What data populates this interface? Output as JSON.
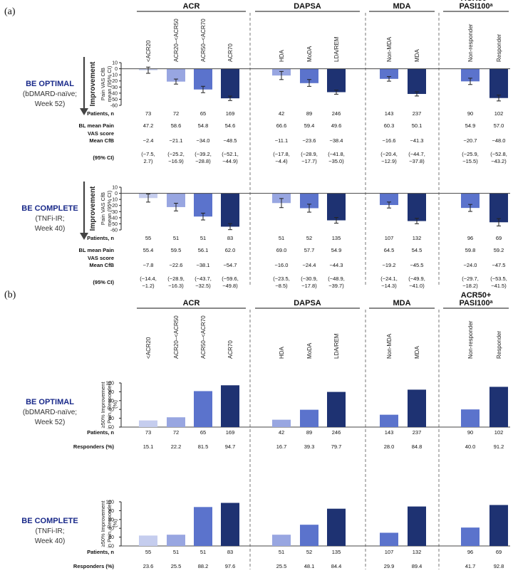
{
  "panel_labels": [
    "(a)",
    "(b)"
  ],
  "groups": [
    {
      "name": "ACR",
      "sup": "",
      "categories": [
        "<ACR20",
        "ACR20–<ACR50",
        "ACR50–<ACR70",
        "ACR70"
      ]
    },
    {
      "name": "DAPSA",
      "sup": "",
      "categories": [
        "HDA",
        "MoDA",
        "LDA/REM"
      ]
    },
    {
      "name": "MDA",
      "sup": "",
      "categories": [
        "Non-MDA",
        "MDA"
      ]
    },
    {
      "name": "ACR50+ PASI100",
      "name_line1": "ACR50+",
      "name_line2": "PASI100",
      "sup": "a",
      "categories": [
        "Non-responder",
        "Responder"
      ]
    }
  ],
  "colors": [
    "#c5cdee",
    "#98a6e1",
    "#5b73cc",
    "#1e3272",
    "#98a6e1",
    "#5b73cc",
    "#1e3272",
    "#5b73cc",
    "#1e3272",
    "#5b73cc",
    "#1e3272"
  ],
  "improvement_label": "Improvement",
  "studies": [
    {
      "name": "BE OPTIMAL",
      "sub1": "(bDMARD-naïve;",
      "sub2": "Week 52)"
    },
    {
      "name": "BE COMPLETE",
      "sub1": "(TNFi-IR;",
      "sub2": "Week 40)"
    }
  ],
  "row_labels": {
    "patients": "Patients, n",
    "bl1": "BL mean Pain",
    "bl2": "VAS score",
    "mean_cfb": "Mean CfB",
    "ci": "(95% CI)",
    "responders": "Responders (%)"
  },
  "panel_a": {
    "ylabel_1": "Pain VAS CfB",
    "ylabel_2": "mean (95% CI)",
    "yticks": [
      10,
      0,
      -10,
      -20,
      -30,
      -40,
      -50,
      -60
    ],
    "optimal": {
      "patients": [
        "73",
        "72",
        "65",
        "169",
        "42",
        "89",
        "246",
        "143",
        "237",
        "90",
        "102"
      ],
      "bl_mean": [
        "47.2",
        "58.6",
        "54.8",
        "54.6",
        "66.6",
        "59.4",
        "49.6",
        "60.3",
        "50.1",
        "54.9",
        "57.0"
      ],
      "mean_cfb": [
        "−2.4",
        "−21.1",
        "−34.0",
        "−48.5",
        "−11.1",
        "−23.6",
        "−38.4",
        "−16.6",
        "−41.3",
        "−20.7",
        "−48.0"
      ],
      "ci_1": [
        "(−7.5,",
        "(−25.2,",
        "(−39.2,",
        "(−52.1,",
        "(−17.8,",
        "(−28.9,",
        "(−41.8,",
        "(−20.4,",
        "(−44.7,",
        "(−25.9,",
        "(−52.8,"
      ],
      "ci_2": [
        "2.7)",
        "−16.9)",
        "−28.8)",
        "−44.9)",
        "−4.4)",
        "−17.7)",
        "−35.0)",
        "−12.9)",
        "−37.8)",
        "−15.5)",
        "−43.2)"
      ]
    },
    "complete": {
      "patients": [
        "55",
        "51",
        "51",
        "83",
        "51",
        "52",
        "135",
        "107",
        "132",
        "96",
        "69"
      ],
      "bl_mean": [
        "55.4",
        "59.5",
        "56.1",
        "62.0",
        "69.0",
        "57.7",
        "54.9",
        "64.5",
        "54.5",
        "59.8",
        "59.2"
      ],
      "mean_cfb": [
        "−7.8",
        "−22.6",
        "−38.1",
        "−54.7",
        "−16.0",
        "−24.4",
        "−44.3",
        "−19.2",
        "−45.5",
        "−24.0",
        "−47.5"
      ],
      "ci_1": [
        "(−14.4,",
        "(−28.9,",
        "(−43.7,",
        "(−59.6,",
        "(−23.5,",
        "(−30.9,",
        "(−48.9,",
        "(−24.1,",
        "(−49.9,",
        "(−29.7,",
        "(−53.5,"
      ],
      "ci_2": [
        "−1.2)",
        "−16.3)",
        "−32.5)",
        "−49.8)",
        "−8.5)",
        "−17.8)",
        "−39.7)",
        "−14.3)",
        "−41.0)",
        "−18.2)",
        "−41.5)"
      ]
    }
  },
  "panel_b": {
    "ylabel_1": "≥50% Improvement",
    "ylabel_2": "in Pain, Responders",
    "ylabel_3": "(%)",
    "yticks": [
      0,
      20,
      40,
      60,
      80,
      100
    ],
    "optimal": {
      "patients": [
        "73",
        "72",
        "65",
        "169",
        "42",
        "89",
        "246",
        "143",
        "237",
        "90",
        "102"
      ],
      "responders": [
        "15.1",
        "22.2",
        "81.5",
        "94.7",
        "16.7",
        "39.3",
        "79.7",
        "28.0",
        "84.8",
        "40.0",
        "91.2"
      ]
    },
    "complete": {
      "patients": [
        "55",
        "51",
        "51",
        "83",
        "51",
        "52",
        "135",
        "107",
        "132",
        "96",
        "69"
      ],
      "responders": [
        "23.6",
        "25.5",
        "88.2",
        "97.6",
        "25.5",
        "48.1",
        "84.4",
        "29.9",
        "89.4",
        "41.7",
        "92.8"
      ]
    }
  },
  "chart_data": [
    {
      "type": "bar",
      "title": "(a) BE OPTIMAL (bDMARD-naïve; Week 52)",
      "categories": [
        "<ACR20",
        "ACR20–<ACR50",
        "ACR50–<ACR70",
        "ACR70",
        "HDA",
        "MoDA",
        "LDA/REM",
        "Non-MDA",
        "MDA",
        "Non-responder",
        "Responder"
      ],
      "values": [
        -2.4,
        -21.1,
        -34.0,
        -48.5,
        -11.1,
        -23.6,
        -38.4,
        -16.6,
        -41.3,
        -20.7,
        -48.0
      ],
      "ci_low": [
        -7.5,
        -25.2,
        -39.2,
        -52.1,
        -17.8,
        -28.9,
        -41.8,
        -20.4,
        -44.7,
        -25.9,
        -52.8
      ],
      "ci_high": [
        2.7,
        -16.9,
        -28.8,
        -44.9,
        -4.4,
        -17.7,
        -35.0,
        -12.9,
        -37.8,
        -15.5,
        -43.2
      ],
      "ylabel": "Pain VAS CfB mean (95% CI)",
      "ylim": [
        -60,
        10
      ]
    },
    {
      "type": "bar",
      "title": "(a) BE COMPLETE (TNFi-IR; Week 40)",
      "categories": [
        "<ACR20",
        "ACR20–<ACR50",
        "ACR50–<ACR70",
        "ACR70",
        "HDA",
        "MoDA",
        "LDA/REM",
        "Non-MDA",
        "MDA",
        "Non-responder",
        "Responder"
      ],
      "values": [
        -7.8,
        -22.6,
        -38.1,
        -54.7,
        -16.0,
        -24.4,
        -44.3,
        -19.2,
        -45.5,
        -24.0,
        -47.5
      ],
      "ci_low": [
        -14.4,
        -28.9,
        -43.7,
        -59.6,
        -23.5,
        -30.9,
        -48.9,
        -24.1,
        -49.9,
        -29.7,
        -53.5
      ],
      "ci_high": [
        -1.2,
        -16.3,
        -32.5,
        -49.8,
        -8.5,
        -17.8,
        -39.7,
        -14.3,
        -41.0,
        -18.2,
        -41.5
      ],
      "ylabel": "Pain VAS CfB mean (95% CI)",
      "ylim": [
        -60,
        10
      ]
    },
    {
      "type": "bar",
      "title": "(b) BE OPTIMAL (bDMARD-naïve; Week 52)",
      "categories": [
        "<ACR20",
        "ACR20–<ACR50",
        "ACR50–<ACR70",
        "ACR70",
        "HDA",
        "MoDA",
        "LDA/REM",
        "Non-MDA",
        "MDA",
        "Non-responder",
        "Responder"
      ],
      "values": [
        15.1,
        22.2,
        81.5,
        94.7,
        16.7,
        39.3,
        79.7,
        28.0,
        84.8,
        40.0,
        91.2
      ],
      "ylabel": "≥50% Improvement in Pain, Responders (%)",
      "ylim": [
        0,
        100
      ]
    },
    {
      "type": "bar",
      "title": "(b) BE COMPLETE (TNFi-IR; Week 40)",
      "categories": [
        "<ACR20",
        "ACR20–<ACR50",
        "ACR50–<ACR70",
        "ACR70",
        "HDA",
        "MoDA",
        "LDA/REM",
        "Non-MDA",
        "MDA",
        "Non-responder",
        "Responder"
      ],
      "values": [
        23.6,
        25.5,
        88.2,
        97.6,
        25.5,
        48.1,
        84.4,
        29.9,
        89.4,
        41.7,
        92.8
      ],
      "ylabel": "≥50% Improvement in Pain, Responders (%)",
      "ylim": [
        0,
        100
      ]
    }
  ]
}
